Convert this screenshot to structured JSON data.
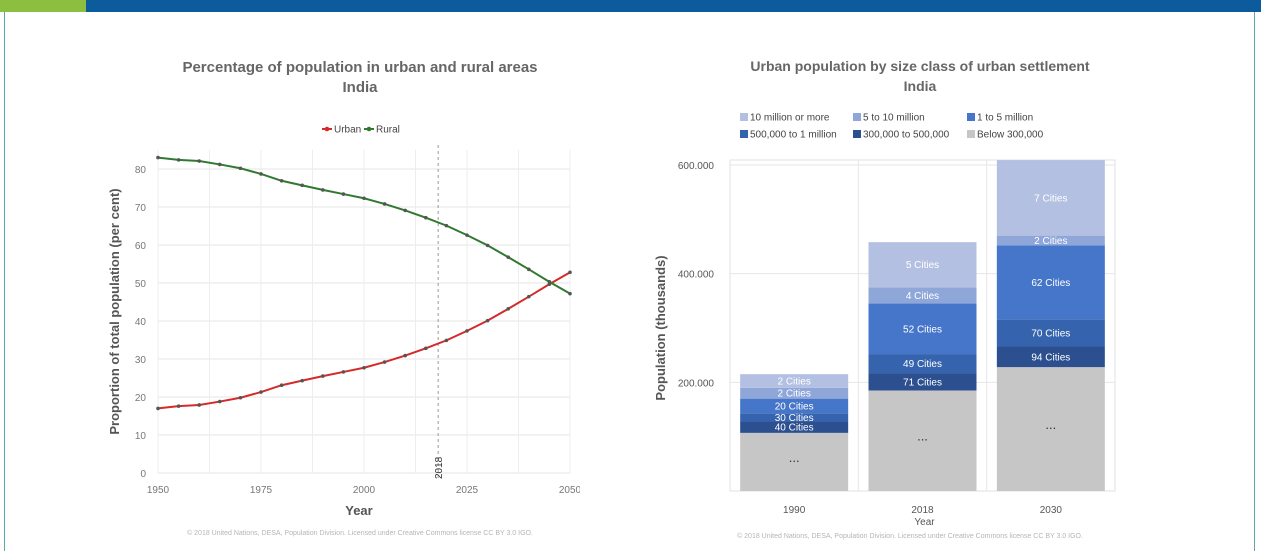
{
  "colors": {
    "top_bar": "#0c5b9c",
    "top_bar_accent": "#8cbf3f",
    "urban": "#d42a2a",
    "rural": "#2f7a2f"
  },
  "left": {
    "title": "Percentage of population in urban and rural areas",
    "subtitle": "India",
    "credit": "© 2018 United Nations, DESA, Population Division. Licensed under Creative Commons license CC BY 3.0 IGO."
  },
  "right": {
    "title": "Urban population by size class of urban settlement",
    "subtitle": "India",
    "credit": "© 2018 United Nations, DESA, Population Division. Licensed under Creative Commons license CC BY 3.0 IGO."
  },
  "chart_data": [
    {
      "type": "line",
      "title": "Percentage of population in urban and rural areas",
      "subtitle": "India",
      "xlabel": "Year",
      "ylabel": "Proportion of total population (per cent)",
      "xlim": [
        1950,
        2050
      ],
      "ylim": [
        0,
        85
      ],
      "x_ticks": [
        1950,
        1975,
        2000,
        2025,
        2050
      ],
      "y_ticks": [
        0,
        10,
        20,
        30,
        40,
        50,
        60,
        70,
        80
      ],
      "reference_line": {
        "x": 2018,
        "label": "2018"
      },
      "grid": true,
      "legend_position": "top-center",
      "x": [
        1950,
        1955,
        1960,
        1965,
        1970,
        1975,
        1980,
        1985,
        1990,
        1995,
        2000,
        2005,
        2010,
        2015,
        2020,
        2025,
        2030,
        2035,
        2040,
        2045,
        2050
      ],
      "series": [
        {
          "name": "Urban",
          "color": "#d42a2a",
          "values": [
            17.0,
            17.6,
            17.9,
            18.8,
            19.8,
            21.3,
            23.1,
            24.3,
            25.5,
            26.6,
            27.7,
            29.2,
            30.9,
            32.8,
            34.9,
            37.4,
            40.1,
            43.2,
            46.4,
            49.7,
            52.8
          ]
        },
        {
          "name": "Rural",
          "color": "#2f7a2f",
          "values": [
            83.0,
            82.4,
            82.1,
            81.2,
            80.2,
            78.7,
            76.9,
            75.7,
            74.5,
            73.4,
            72.3,
            70.8,
            69.1,
            67.2,
            65.1,
            62.6,
            59.9,
            56.8,
            53.6,
            50.3,
            47.2
          ]
        }
      ]
    },
    {
      "type": "bar",
      "stacked": true,
      "title": "Urban population by size class of urban settlement",
      "subtitle": "India",
      "xlabel": "Year",
      "ylabel": "Population (thousands)",
      "ylim": [
        0,
        600000
      ],
      "y_ticks": [
        200000,
        400000,
        600000
      ],
      "y_tick_labels": [
        "200.000",
        "400.000",
        "600.000"
      ],
      "legend_position": "top-left",
      "categories": [
        "1990",
        "2018",
        "2030"
      ],
      "series": [
        {
          "name": "Below 300,000",
          "color": "#c6c6c6",
          "values": [
            107000,
            185000,
            228000
          ],
          "labels": [
            "...",
            "...",
            "..."
          ]
        },
        {
          "name": "300,000 to 500,000",
          "color": "#2c4f8f",
          "values": [
            21000,
            32000,
            38000
          ],
          "labels": [
            "40 Cities",
            "71 Cities",
            "94 Cities"
          ]
        },
        {
          "name": "500,000 to 1 million",
          "color": "#3563ad",
          "values": [
            15000,
            35000,
            50000
          ],
          "labels": [
            "30 Cities",
            "49 Cities",
            "70 Cities"
          ]
        },
        {
          "name": "1 to 5 million",
          "color": "#4676c9",
          "values": [
            27000,
            93000,
            136000
          ],
          "labels": [
            "20 Cities",
            "52 Cities",
            "62 Cities"
          ]
        },
        {
          "name": "5 to 10 million",
          "color": "#8fa6d9",
          "values": [
            20000,
            30000,
            18000
          ],
          "labels": [
            "2 Cities",
            "4 Cities",
            "2 Cities"
          ]
        },
        {
          "name": "10 million or more",
          "color": "#b3c0e2",
          "values": [
            25000,
            83000,
            139000
          ],
          "labels": [
            "2 Cities",
            "5 Cities",
            "7 Cities"
          ]
        }
      ],
      "legend_order": [
        "10 million or more",
        "5 to 10 million",
        "1 to 5 million",
        "500,000 to 1 million",
        "300,000 to 500,000",
        "Below 300,000"
      ]
    }
  ]
}
